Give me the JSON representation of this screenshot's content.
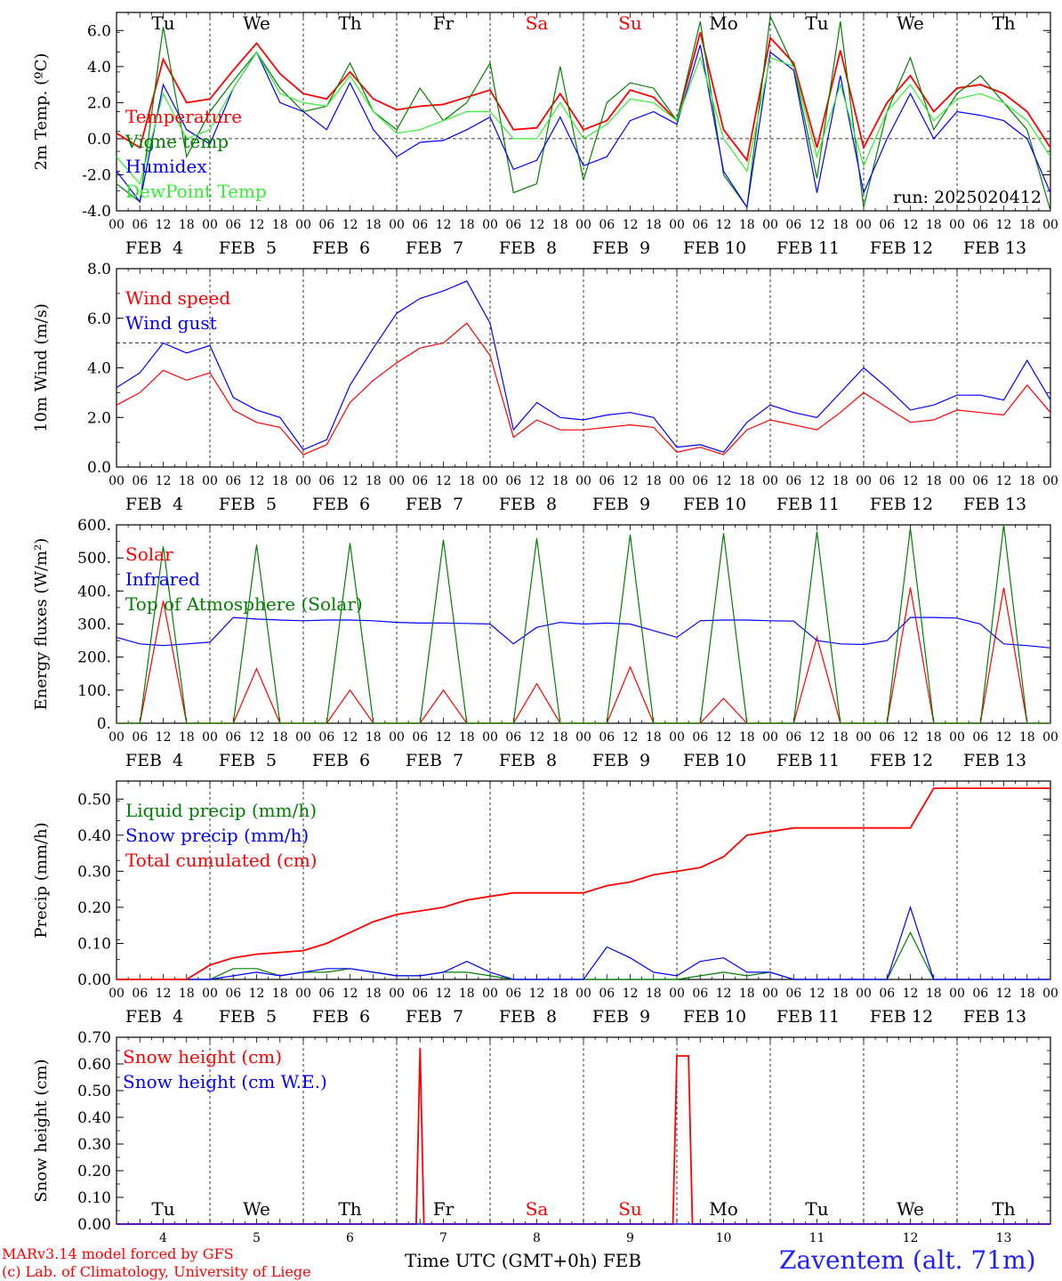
{
  "colors": {
    "red": "#ff0000",
    "dark_green": "#008000",
    "blue": "#0000ff",
    "light_green": "#33ee33",
    "station": "#2020ff"
  },
  "footer": {
    "credit_line1": "MARv3.14 model forced by GFS",
    "credit_line2": "(c) Lab. of Climatology, University of Liege",
    "x_title": "Time UTC (GMT+0h) FEB",
    "station": "Zaventem (alt. 71m)"
  },
  "time_axis": {
    "hour_ticks": [
      "00",
      "06",
      "12",
      "18"
    ],
    "end_tick": "00",
    "date_labels": [
      "FEB  4",
      "FEB  5",
      "FEB  6",
      "FEB  7",
      "FEB  8",
      "FEB  9",
      "FEB 10",
      "FEB 11",
      "FEB 12",
      "FEB 13"
    ],
    "day_numbers": [
      "4",
      "5",
      "6",
      "7",
      "8",
      "9",
      "10",
      "11",
      "12",
      "13"
    ],
    "weekdays": [
      "Tu",
      "We",
      "Th",
      "Fr",
      "Sa",
      "Su",
      "Mo",
      "Tu",
      "We",
      "Th"
    ],
    "weekday_colors": [
      "#000000",
      "#000000",
      "#000000",
      "#000000",
      "#ff0000",
      "#ff0000",
      "#000000",
      "#000000",
      "#000000",
      "#000000"
    ]
  },
  "chart_data": [
    {
      "type": "line",
      "ylabel": "2m Temp. (ºC)",
      "ylim": [
        -4,
        7
      ],
      "y_ticks": [
        "-4.0",
        "-2.0",
        "0.0",
        "2.0",
        "4.0",
        "6.0"
      ],
      "ref_line": 0,
      "annotation": "run: 2025020412",
      "x_hours": [
        0,
        6,
        12,
        18,
        24,
        30,
        36,
        42,
        48,
        54,
        60,
        66,
        72,
        78,
        84,
        90,
        96,
        102,
        108,
        114,
        120,
        126,
        132,
        138,
        144,
        150,
        156,
        162,
        168,
        174,
        180,
        186,
        192,
        198,
        204,
        210,
        216,
        222,
        228,
        234,
        240
      ],
      "series": [
        {
          "name": "Temperature",
          "color": "#ff0000",
          "values": [
            0.3,
            -0.5,
            4.4,
            2.0,
            2.2,
            3.8,
            5.3,
            3.6,
            2.5,
            2.2,
            3.7,
            2.2,
            1.6,
            1.8,
            1.9,
            2.3,
            2.7,
            0.5,
            0.6,
            2.5,
            0.5,
            1.0,
            2.7,
            2.3,
            1.0,
            5.9,
            0.5,
            -1.2,
            5.6,
            4.2,
            -0.5,
            4.9,
            -0.5,
            2.0,
            3.5,
            1.5,
            2.8,
            3.0,
            2.5,
            1.5,
            -0.5
          ]
        },
        {
          "name": "Vigne temp",
          "color": "#008000",
          "values": [
            -2.5,
            -3.5,
            6.2,
            -1.0,
            1.5,
            3.2,
            4.8,
            2.8,
            1.5,
            1.8,
            4.2,
            1.5,
            0.5,
            2.8,
            1.0,
            2.0,
            4.2,
            -3.0,
            -2.5,
            4.0,
            -2.3,
            2.0,
            3.1,
            2.8,
            1.0,
            6.5,
            -2.0,
            -3.8,
            6.8,
            4.0,
            -2.2,
            6.5,
            -3.8,
            1.5,
            4.5,
            0.5,
            2.5,
            3.5,
            2.0,
            0.5,
            -4.0
          ]
        },
        {
          "name": "Humidex",
          "color": "#0000ff",
          "values": [
            -1.8,
            -3.5,
            3.0,
            0.5,
            -0.3,
            2.8,
            4.8,
            2.0,
            1.5,
            0.5,
            3.1,
            0.5,
            -1.0,
            -0.2,
            -0.1,
            0.5,
            1.2,
            -1.7,
            -1.2,
            1.2,
            -1.5,
            -1.0,
            1.0,
            1.5,
            0.8,
            5.2,
            -1.8,
            -3.8,
            4.8,
            3.8,
            -3.0,
            3.5,
            -3.0,
            0.0,
            2.5,
            0.0,
            1.5,
            1.3,
            1.0,
            0.0,
            -3.0
          ]
        },
        {
          "name": "DewPoint Temp",
          "color": "#33ee33",
          "values": [
            -1.0,
            -2.5,
            2.5,
            0.0,
            0.5,
            2.8,
            4.8,
            2.5,
            2.0,
            1.8,
            3.5,
            1.5,
            0.3,
            0.5,
            1.0,
            1.5,
            1.5,
            0.0,
            0.0,
            2.0,
            0.0,
            0.8,
            2.2,
            2.0,
            1.0,
            4.5,
            0.0,
            -1.8,
            4.5,
            4.0,
            -1.0,
            3.0,
            -1.5,
            1.5,
            3.0,
            1.0,
            2.2,
            2.5,
            2.0,
            1.0,
            -1.0
          ]
        }
      ]
    },
    {
      "type": "line",
      "ylabel": "10m Wind (m/s)",
      "ylim": [
        0,
        8
      ],
      "y_ticks": [
        "0.0",
        "2.0",
        "4.0",
        "6.0",
        "8.0"
      ],
      "ref_line": 5,
      "x_hours": [
        0,
        6,
        12,
        18,
        24,
        30,
        36,
        42,
        48,
        54,
        60,
        66,
        72,
        78,
        84,
        90,
        96,
        102,
        108,
        114,
        120,
        126,
        132,
        138,
        144,
        150,
        156,
        162,
        168,
        174,
        180,
        186,
        192,
        198,
        204,
        210,
        216,
        222,
        228,
        234,
        240
      ],
      "series": [
        {
          "name": "Wind speed",
          "color": "#ff0000",
          "values": [
            2.5,
            3.0,
            3.9,
            3.5,
            3.8,
            2.3,
            1.8,
            1.6,
            0.5,
            0.9,
            2.6,
            3.5,
            4.2,
            4.8,
            5.0,
            5.8,
            4.5,
            1.2,
            1.9,
            1.5,
            1.5,
            1.6,
            1.7,
            1.6,
            0.6,
            0.8,
            0.5,
            1.5,
            1.9,
            1.7,
            1.5,
            2.2,
            3.0,
            2.4,
            1.8,
            1.9,
            2.3,
            2.2,
            2.1,
            3.3,
            2.2
          ]
        },
        {
          "name": "Wind gust",
          "color": "#0000ff",
          "values": [
            3.2,
            3.8,
            5.0,
            4.6,
            4.9,
            2.8,
            2.3,
            2.0,
            0.7,
            1.1,
            3.3,
            4.8,
            6.2,
            6.8,
            7.1,
            7.5,
            5.8,
            1.5,
            2.6,
            2.0,
            1.9,
            2.1,
            2.2,
            2.0,
            0.8,
            0.9,
            0.6,
            1.8,
            2.5,
            2.2,
            2.0,
            3.0,
            4.0,
            3.2,
            2.3,
            2.5,
            2.9,
            2.9,
            2.7,
            4.3,
            2.7
          ]
        }
      ]
    },
    {
      "type": "line",
      "ylabel": "Energy fluxes (W/m²)",
      "ylim": [
        0,
        600
      ],
      "y_ticks": [
        "0.",
        "100.",
        "200.",
        "300.",
        "400.",
        "500.",
        "600."
      ],
      "x_hours": [
        0,
        6,
        12,
        18,
        24,
        30,
        36,
        42,
        48,
        54,
        60,
        66,
        72,
        78,
        84,
        90,
        96,
        102,
        108,
        114,
        120,
        126,
        132,
        138,
        144,
        150,
        156,
        162,
        168,
        174,
        180,
        186,
        192,
        198,
        204,
        210,
        216,
        222,
        228,
        234,
        240
      ],
      "series": [
        {
          "name": "Solar",
          "color": "#ff0000",
          "values": [
            0,
            0,
            370,
            0,
            0,
            0,
            165,
            0,
            0,
            0,
            100,
            0,
            0,
            0,
            100,
            0,
            0,
            0,
            120,
            0,
            0,
            0,
            170,
            0,
            0,
            0,
            75,
            0,
            0,
            0,
            260,
            0,
            0,
            0,
            410,
            0,
            0,
            0,
            410,
            0,
            0
          ]
        },
        {
          "name": "Infrared",
          "color": "#0000ff",
          "values": [
            260,
            240,
            235,
            240,
            245,
            320,
            315,
            312,
            310,
            312,
            312,
            310,
            305,
            303,
            303,
            302,
            300,
            240,
            290,
            305,
            300,
            303,
            300,
            280,
            260,
            310,
            312,
            312,
            310,
            309,
            250,
            240,
            238,
            250,
            320,
            320,
            318,
            300,
            240,
            235,
            228
          ]
        },
        {
          "name": "Top of Atmosphere (Solar)",
          "color": "#008000",
          "values": [
            0,
            0,
            535,
            0,
            0,
            0,
            540,
            0,
            0,
            0,
            545,
            0,
            0,
            0,
            555,
            0,
            0,
            0,
            560,
            0,
            0,
            0,
            570,
            0,
            0,
            0,
            575,
            0,
            0,
            0,
            580,
            0,
            0,
            0,
            590,
            0,
            0,
            0,
            600,
            0,
            0
          ]
        }
      ]
    },
    {
      "type": "line",
      "ylabel": "Precip (mm/h)",
      "ylim": [
        0,
        0.55
      ],
      "y_ticks": [
        "0.00",
        "0.10",
        "0.20",
        "0.30",
        "0.40",
        "0.50"
      ],
      "x_hours": [
        0,
        6,
        12,
        18,
        24,
        30,
        36,
        42,
        48,
        54,
        60,
        66,
        72,
        78,
        84,
        90,
        96,
        102,
        108,
        114,
        120,
        126,
        132,
        138,
        144,
        150,
        156,
        162,
        168,
        174,
        180,
        186,
        192,
        198,
        204,
        210,
        216,
        222,
        228,
        234,
        240
      ],
      "series": [
        {
          "name": "Liquid precip (mm/h)",
          "color": "#008000",
          "values": [
            0,
            0,
            0,
            0,
            0,
            0.03,
            0.03,
            0.01,
            0.02,
            0.02,
            0.03,
            0.02,
            0.01,
            0.01,
            0.02,
            0.02,
            0.01,
            0,
            0,
            0,
            0,
            0,
            0,
            0,
            0,
            0.01,
            0.02,
            0.01,
            0.02,
            0,
            0,
            0,
            0,
            0,
            0.13,
            0,
            0,
            0,
            0,
            0,
            0
          ]
        },
        {
          "name": "Snow precip (mm/h)",
          "color": "#0000ff",
          "values": [
            0,
            0,
            0,
            0,
            0,
            0.01,
            0.02,
            0.01,
            0.02,
            0.03,
            0.03,
            0.02,
            0.01,
            0.01,
            0.02,
            0.05,
            0.02,
            0,
            0,
            0,
            0,
            0.09,
            0.06,
            0.02,
            0.01,
            0.05,
            0.06,
            0.02,
            0.02,
            0,
            0,
            0,
            0,
            0,
            0.2,
            0,
            0,
            0,
            0,
            0,
            0
          ]
        },
        {
          "name": "Total cumulated (cm)",
          "color": "#ff0000",
          "values": [
            0,
            0,
            0,
            0,
            0.04,
            0.06,
            0.07,
            0.075,
            0.08,
            0.1,
            0.13,
            0.16,
            0.18,
            0.19,
            0.2,
            0.22,
            0.23,
            0.24,
            0.24,
            0.24,
            0.24,
            0.26,
            0.27,
            0.29,
            0.3,
            0.31,
            0.34,
            0.4,
            0.41,
            0.42,
            0.42,
            0.42,
            0.42,
            0.42,
            0.42,
            0.53,
            0.53,
            0.53,
            0.53,
            0.53,
            0.53
          ]
        }
      ]
    },
    {
      "type": "line",
      "ylabel": "Snow height (cm)",
      "ylim": [
        0,
        0.7
      ],
      "y_ticks": [
        "0.00",
        "0.10",
        "0.20",
        "0.30",
        "0.40",
        "0.50",
        "0.60",
        "0.70"
      ],
      "series": [
        {
          "name": "Snow height (cm)",
          "color": "#ff0000",
          "x_hours": [
            0,
            77,
            78,
            79,
            143,
            144,
            147,
            148,
            240
          ],
          "values": [
            0,
            0,
            0.66,
            0,
            0,
            0.63,
            0.63,
            0,
            0
          ]
        },
        {
          "name": "Snow height (cm W.E.)",
          "color": "#0000ff",
          "x_hours": [
            0,
            240
          ],
          "values": [
            0,
            0
          ]
        }
      ]
    }
  ]
}
